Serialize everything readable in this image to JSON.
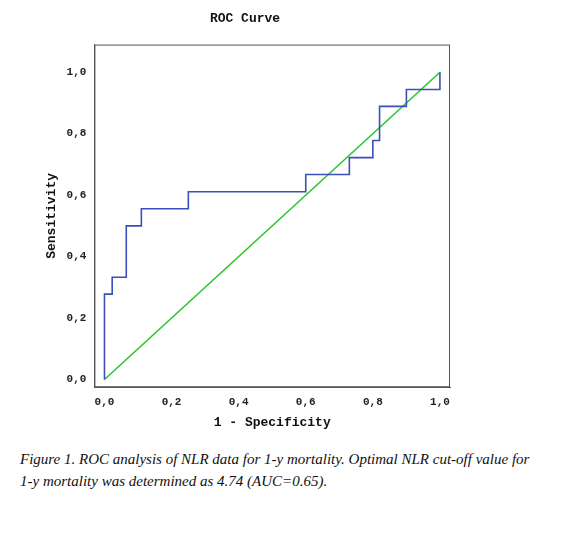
{
  "chart_data": {
    "type": "line",
    "title": "ROC Curve",
    "x_label": "1 - Specificity",
    "y_label": "Sensitivity",
    "xlim": [
      -0.03,
      1.03
    ],
    "ylim": [
      -0.025,
      1.09
    ],
    "xticks": [
      {
        "value": 0,
        "label": "0,0"
      },
      {
        "value": 0.2,
        "label": "0,2"
      },
      {
        "value": 0.4,
        "label": "0,4"
      },
      {
        "value": 0.6,
        "label": "0,6"
      },
      {
        "value": 0.8,
        "label": "0,8"
      },
      {
        "value": 1,
        "label": "1,0"
      }
    ],
    "yticks": [
      {
        "value": 0,
        "label": "0,0"
      },
      {
        "value": 0.2,
        "label": "0,2"
      },
      {
        "value": 0.4,
        "label": "0,4"
      },
      {
        "value": 0.6,
        "label": "0,6"
      },
      {
        "value": 0.8,
        "label": "0,8"
      },
      {
        "value": 1,
        "label": "1,0"
      }
    ],
    "grid": false,
    "series": [
      {
        "color": "#3a4fb8",
        "line_style": "solid",
        "marker": "none",
        "x": [
          0,
          0,
          0.023,
          0.023,
          0.065,
          0.065,
          0.11,
          0.11,
          0.25,
          0.25,
          0.6,
          0.6,
          0.73,
          0.73,
          0.8,
          0.8,
          0.82,
          0.82,
          0.9,
          0.9,
          1,
          1
        ],
        "values": [
          0,
          0.278,
          0.278,
          0.333,
          0.333,
          0.5,
          0.5,
          0.556,
          0.556,
          0.611,
          0.611,
          0.667,
          0.667,
          0.722,
          0.722,
          0.778,
          0.778,
          0.889,
          0.889,
          0.944,
          0.944,
          1
        ]
      },
      {
        "color": "#2ec42e",
        "line_style": "solid",
        "marker": "none",
        "x": [
          0,
          1
        ],
        "values": [
          0,
          1
        ]
      }
    ],
    "caption": "Figure 1. ROC analysis of NLR data for 1-y mortality. Optimal NLR cut-off value for 1-y mortality was determined as 4.74 (AUC=0.65)."
  }
}
